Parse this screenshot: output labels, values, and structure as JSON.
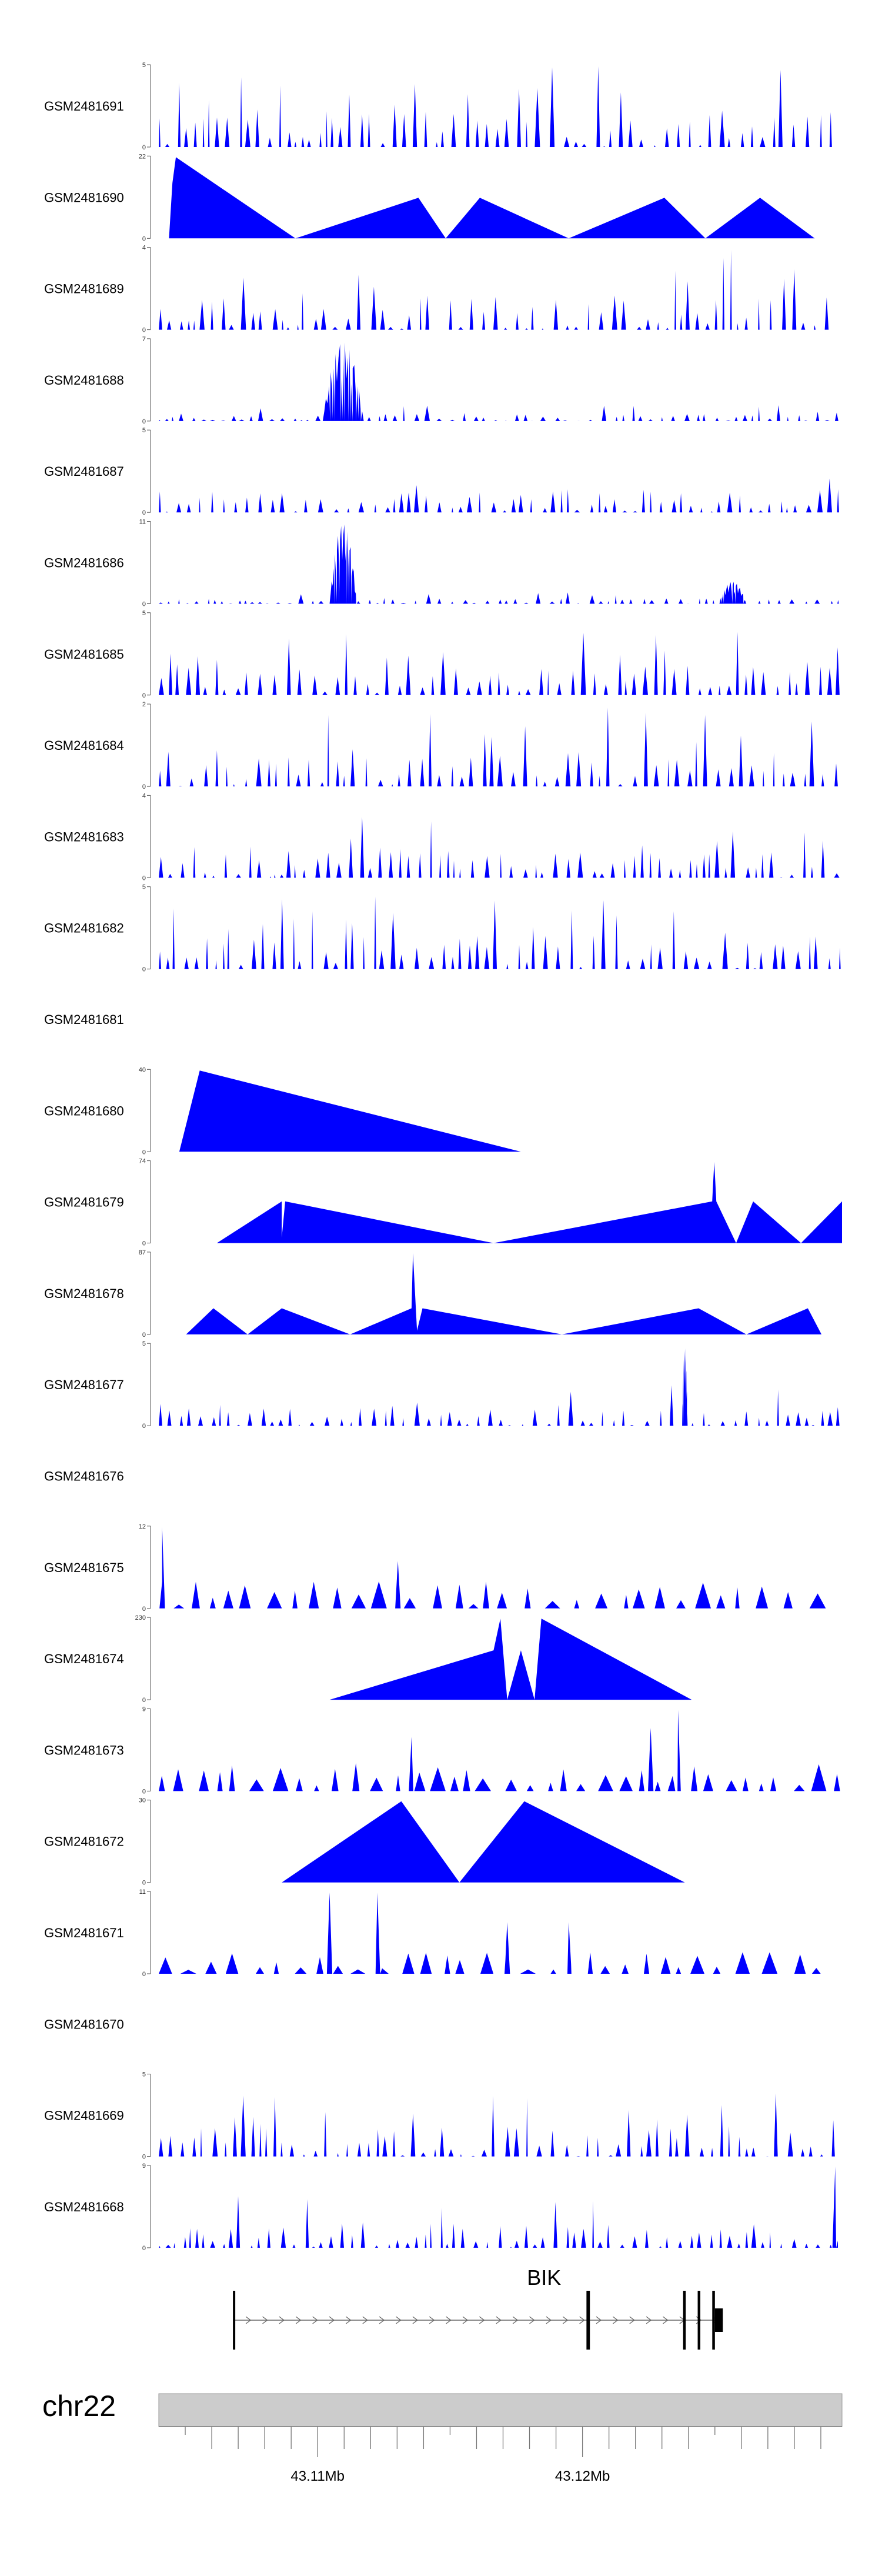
{
  "chart_data": {
    "type": "area",
    "title": "",
    "chromosome": "chr22",
    "gene": {
      "name": "BIK",
      "start": 43106800,
      "end": 43125300,
      "strand": "+",
      "exons": [
        [
          43106800,
          43106830
        ],
        [
          43120150,
          43120280
        ],
        [
          43123800,
          43123900
        ],
        [
          43124350,
          43124450
        ],
        [
          43124900,
          43125000
        ],
        [
          43125000,
          43125300
        ]
      ]
    },
    "xlim": [
      43104000,
      43129800
    ],
    "x_axis": {
      "ticks": [
        43105000,
        43106000,
        43107000,
        43108000,
        43109000,
        43110000,
        43111000,
        43112000,
        43113000,
        43114000,
        43115000,
        43116000,
        43117000,
        43118000,
        43119000,
        43120000,
        43121000,
        43122000,
        43123000,
        43124000,
        43125000,
        43126000,
        43127000,
        43128000,
        43129000
      ],
      "labels": [
        {
          "value": 43110000,
          "text": "43.11Mb"
        },
        {
          "value": 43120000,
          "text": "43.12Mb"
        }
      ]
    },
    "tracks": [
      {
        "name": "GSM2481691",
        "ymax": "5",
        "color": "#0000ff",
        "kind": "dense",
        "seed": 11,
        "peak": 5
      },
      {
        "name": "GSM2481690",
        "ymax": "22",
        "color": "#0000ff",
        "kind": "poly",
        "points": [
          [
            0.015,
            0
          ],
          [
            0.02,
            15
          ],
          [
            0.025,
            22
          ],
          [
            0.2,
            0
          ],
          [
            0.38,
            11
          ],
          [
            0.42,
            0
          ],
          [
            0.47,
            11
          ],
          [
            0.6,
            0
          ],
          [
            0.74,
            11
          ],
          [
            0.8,
            0
          ],
          [
            0.88,
            11
          ],
          [
            0.96,
            0
          ]
        ]
      },
      {
        "name": "GSM2481689",
        "ymax": "4",
        "color": "#0000ff",
        "kind": "dense",
        "seed": 23,
        "peak": 4
      },
      {
        "name": "GSM2481688",
        "ymax": "7",
        "color": "#0000ff",
        "kind": "dense",
        "seed": 37,
        "peak": 1.4,
        "bumps": [
          [
            0.27,
            6.8,
            0.03
          ]
        ]
      },
      {
        "name": "GSM2481687",
        "ymax": "5",
        "color": "#0000ff",
        "kind": "dense",
        "seed": 41,
        "peak": 3.2
      },
      {
        "name": "GSM2481686",
        "ymax": "11",
        "color": "#0000ff",
        "kind": "dense",
        "seed": 53,
        "peak": 1.6,
        "bumps": [
          [
            0.27,
            10.8,
            0.02
          ],
          [
            0.84,
            3,
            0.02
          ]
        ]
      },
      {
        "name": "GSM2481685",
        "ymax": "5",
        "color": "#0000ff",
        "kind": "dense",
        "seed": 61,
        "peak": 4
      },
      {
        "name": "GSM2481684",
        "ymax": "2",
        "color": "#0000ff",
        "kind": "dense",
        "seed": 71,
        "peak": 2
      },
      {
        "name": "GSM2481683",
        "ymax": "4",
        "color": "#0000ff",
        "kind": "dense",
        "seed": 83,
        "peak": 3.5
      },
      {
        "name": "GSM2481682",
        "ymax": "5",
        "color": "#0000ff",
        "kind": "dense",
        "seed": 97,
        "peak": 4.6
      },
      {
        "name": "GSM2481681",
        "ymax": "",
        "color": "#0000ff",
        "kind": "empty"
      },
      {
        "name": "GSM2481680",
        "ymax": "40",
        "color": "#0000ff",
        "kind": "poly",
        "points": [
          [
            0.03,
            0
          ],
          [
            0.06,
            40
          ],
          [
            0.53,
            0
          ]
        ]
      },
      {
        "name": "GSM2481679",
        "ymax": "74",
        "color": "#0000ff",
        "kind": "poly",
        "points": [
          [
            0.085,
            0
          ],
          [
            0.18,
            38
          ],
          [
            0.18,
            5
          ],
          [
            0.185,
            38
          ],
          [
            0.49,
            0
          ],
          [
            0.81,
            38
          ],
          [
            0.813,
            74
          ],
          [
            0.816,
            38
          ],
          [
            0.845,
            0
          ],
          [
            0.87,
            38
          ],
          [
            0.94,
            0
          ],
          [
            1.0,
            38
          ]
        ]
      },
      {
        "name": "GSM2481678",
        "ymax": "87",
        "color": "#0000ff",
        "kind": "poly",
        "points": [
          [
            0.04,
            0
          ],
          [
            0.08,
            28
          ],
          [
            0.13,
            0
          ],
          [
            0.18,
            28
          ],
          [
            0.28,
            0
          ],
          [
            0.37,
            28
          ],
          [
            0.372,
            87
          ],
          [
            0.378,
            4
          ],
          [
            0.386,
            28
          ],
          [
            0.59,
            0
          ],
          [
            0.79,
            28
          ],
          [
            0.86,
            0
          ],
          [
            0.95,
            28
          ],
          [
            0.97,
            0
          ]
        ]
      },
      {
        "name": "GSM2481677",
        "ymax": "5",
        "color": "#0000ff",
        "kind": "dense",
        "seed": 131,
        "peak": 2.6,
        "bumps": [
          [
            0.77,
            4.8,
            0.004
          ]
        ]
      },
      {
        "name": "GSM2481676",
        "ymax": "",
        "color": "#0000ff",
        "kind": "empty"
      },
      {
        "name": "GSM2481675",
        "ymax": "12",
        "color": "#0000ff",
        "kind": "sparse",
        "seed": 151,
        "peak": 5,
        "spikes": [
          [
            0.005,
            12
          ],
          [
            0.35,
            7
          ]
        ]
      },
      {
        "name": "GSM2481674",
        "ymax": "230",
        "color": "#0000ff",
        "kind": "poly",
        "points": [
          [
            0.25,
            0
          ],
          [
            0.49,
            140
          ],
          [
            0.5,
            230
          ],
          [
            0.51,
            0
          ],
          [
            0.53,
            140
          ],
          [
            0.55,
            0
          ],
          [
            0.56,
            230
          ],
          [
            0.78,
            0
          ]
        ]
      },
      {
        "name": "GSM2481673",
        "ymax": "9",
        "color": "#0000ff",
        "kind": "sparse",
        "seed": 167,
        "peak": 4,
        "spikes": [
          [
            0.72,
            7
          ],
          [
            0.76,
            9
          ],
          [
            0.37,
            6
          ]
        ]
      },
      {
        "name": "GSM2481672",
        "ymax": "30",
        "color": "#0000ff",
        "kind": "poly",
        "points": [
          [
            0.18,
            0
          ],
          [
            0.355,
            30
          ],
          [
            0.44,
            0
          ],
          [
            0.535,
            30
          ],
          [
            0.77,
            0
          ]
        ]
      },
      {
        "name": "GSM2481671",
        "ymax": "11",
        "color": "#0000ff",
        "kind": "sparse",
        "seed": 181,
        "peak": 3.5,
        "spikes": [
          [
            0.25,
            11
          ],
          [
            0.32,
            11
          ],
          [
            0.51,
            7
          ],
          [
            0.6,
            7
          ]
        ]
      },
      {
        "name": "GSM2481670",
        "ymax": "",
        "color": "#0000ff",
        "kind": "empty"
      },
      {
        "name": "GSM2481669",
        "ymax": "5",
        "color": "#0000ff",
        "kind": "dense",
        "seed": 191,
        "peak": 4.2
      },
      {
        "name": "GSM2481668",
        "ymax": "9",
        "color": "#0000ff",
        "kind": "dense",
        "seed": 199,
        "peak": 6,
        "spikes": [
          [
            0.99,
            9
          ]
        ]
      }
    ]
  }
}
